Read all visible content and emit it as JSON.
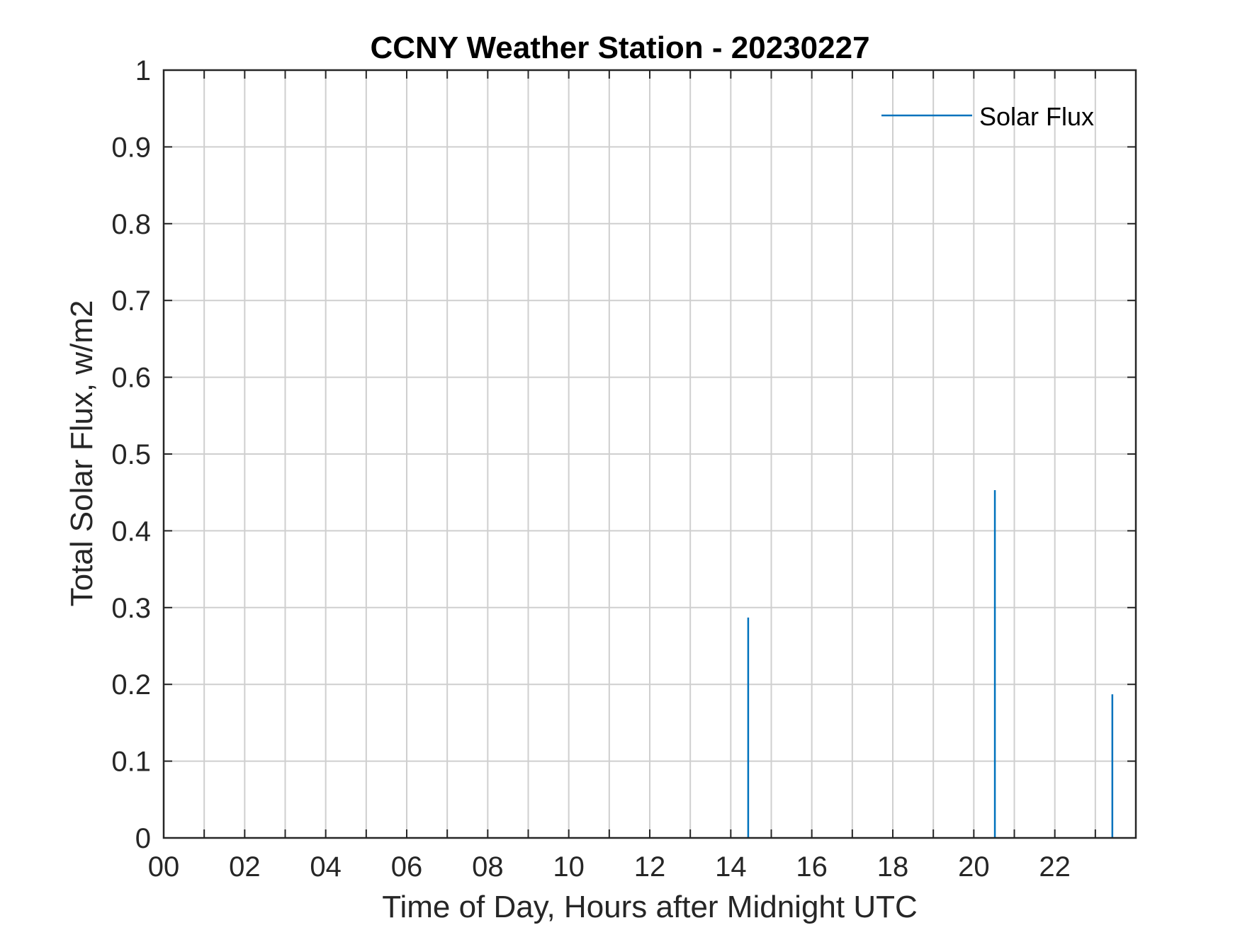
{
  "chart_data": {
    "type": "line",
    "title": "CCNY Weather Station - 20230227",
    "xlabel": "Time of Day, Hours after Midnight UTC",
    "ylabel": "Total Solar Flux, w/m2",
    "xlim": [
      0,
      24
    ],
    "ylim": [
      0,
      1
    ],
    "xticks": [
      0,
      2,
      4,
      6,
      8,
      10,
      12,
      14,
      16,
      18,
      20,
      22
    ],
    "xtick_labels": [
      "00",
      "02",
      "04",
      "06",
      "08",
      "10",
      "12",
      "14",
      "16",
      "18",
      "20",
      "22"
    ],
    "yticks": [
      0,
      0.1,
      0.2,
      0.3,
      0.4,
      0.5,
      0.6,
      0.7,
      0.8,
      0.9,
      1
    ],
    "ytick_labels": [
      "0",
      "0.1",
      "0.2",
      "0.3",
      "0.4",
      "0.5",
      "0.6",
      "0.7",
      "0.8",
      "0.9",
      "1"
    ],
    "grid": true,
    "legend_position": "top-right",
    "series": [
      {
        "name": "Solar Flux",
        "color": "#0072bd",
        "spikes": [
          {
            "x": 14.43,
            "y": 0.287
          },
          {
            "x": 20.52,
            "y": 0.453
          },
          {
            "x": 23.42,
            "y": 0.187
          }
        ]
      }
    ]
  }
}
